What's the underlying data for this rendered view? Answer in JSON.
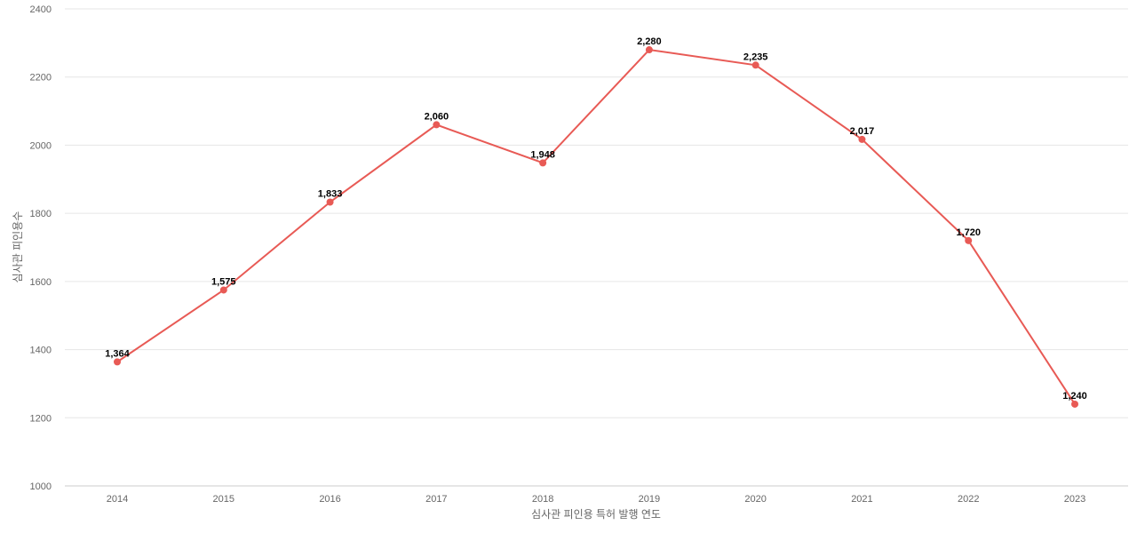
{
  "chart_data": {
    "type": "line",
    "xlabel": "심사관 피인용 특허 발행 연도",
    "ylabel": "심사관 피인용수",
    "categories": [
      "2014",
      "2015",
      "2016",
      "2017",
      "2018",
      "2019",
      "2020",
      "2021",
      "2022",
      "2023"
    ],
    "series": [
      {
        "values": [
          1364,
          1575,
          1833,
          2060,
          1948,
          2280,
          2235,
          2017,
          1720,
          1240
        ],
        "labels": [
          "1,364",
          "1,575",
          "1,833",
          "2,060",
          "1,948",
          "2,280",
          "2,235",
          "2,017",
          "1,720",
          "1,240"
        ]
      }
    ],
    "ylim": [
      1000,
      2400
    ],
    "yticks": [
      "1000",
      "1200",
      "1400",
      "1600",
      "1800",
      "2000",
      "2200",
      "2400"
    ],
    "grid": true,
    "colors": {
      "line": "#e85a55"
    }
  }
}
